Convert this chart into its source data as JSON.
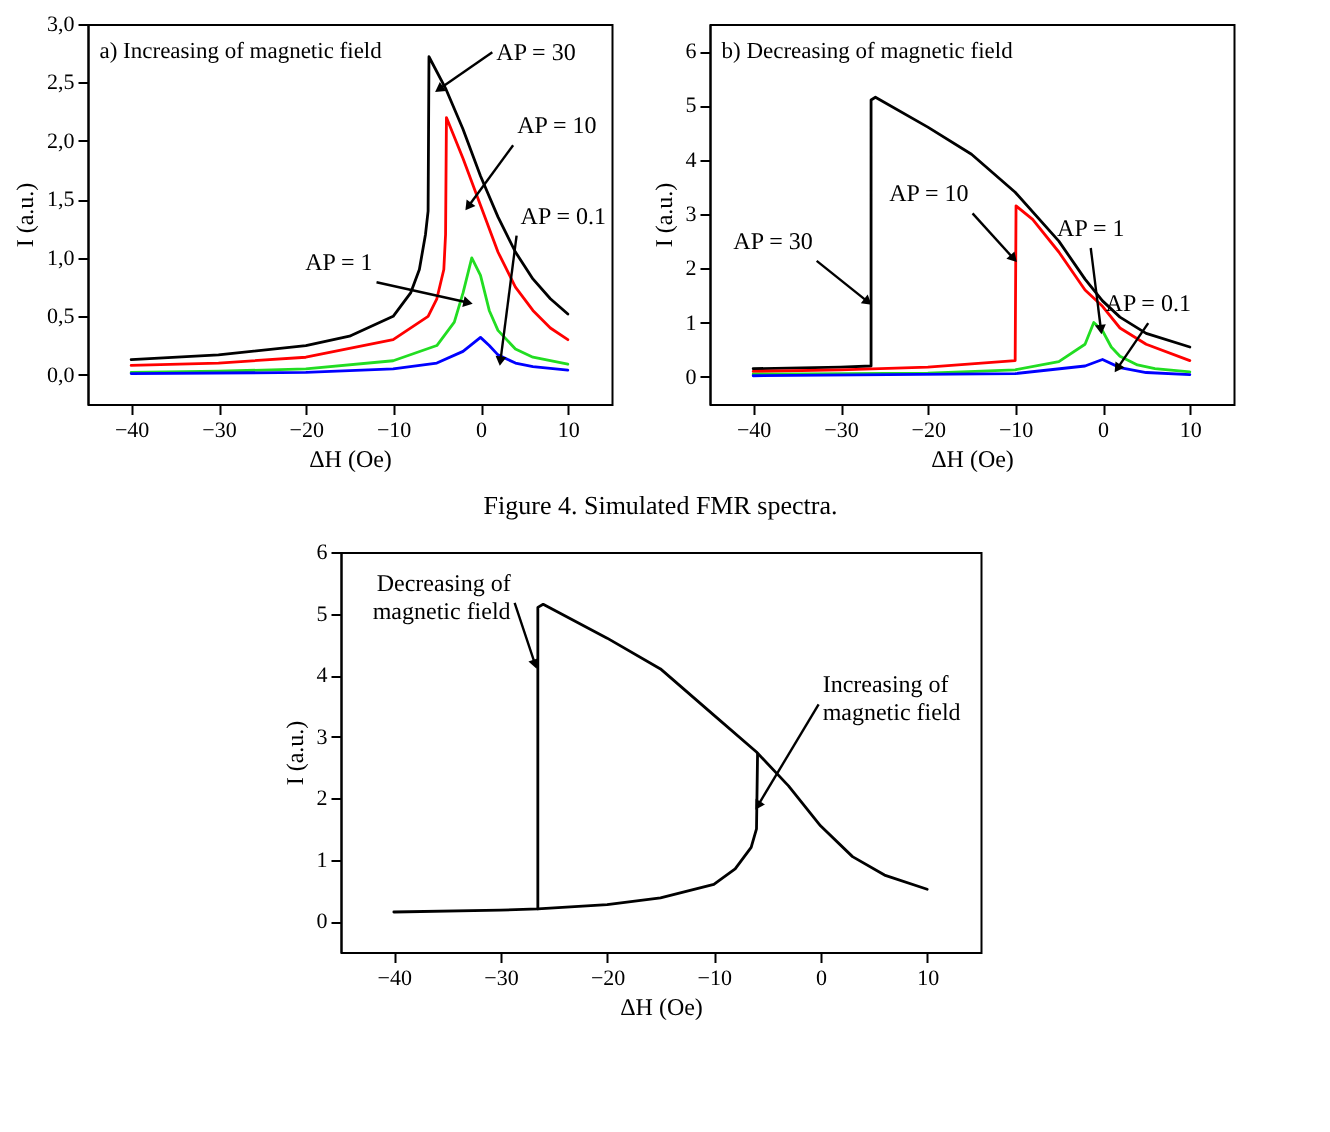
{
  "chart_data": [
    {
      "type": "line",
      "title": "a) Increasing of magnetic field",
      "xlabel": "ΔH (Oe)",
      "ylabel": "I (a.u.)",
      "xlim": [
        -45,
        15
      ],
      "xticks": [
        -40,
        -30,
        -20,
        -10,
        0,
        10
      ],
      "ylim": [
        -0.25,
        3.0
      ],
      "yticks": [
        {
          "value": 0,
          "label": "0,0"
        },
        {
          "value": 0.5,
          "label": "0,5"
        },
        {
          "value": 1,
          "label": "1,0"
        },
        {
          "value": 1.5,
          "label": "1,5"
        },
        {
          "value": 2,
          "label": "2,0"
        },
        {
          "value": 2.5,
          "label": "2,5"
        },
        {
          "value": 3,
          "label": "3,0"
        }
      ],
      "grid": false,
      "line_style": "solid",
      "marker": "none",
      "series": [
        {
          "color": "#000000",
          "x": [
            -40,
            -30,
            -20,
            -15,
            -10,
            -8,
            -7,
            -6.3,
            -6,
            -5.9,
            -4,
            -2,
            0,
            2,
            4,
            6,
            8,
            10
          ],
          "values": [
            0.13,
            0.17,
            0.25,
            0.33,
            0.5,
            0.7,
            0.9,
            1.2,
            1.4,
            2.72,
            2.45,
            2.1,
            1.7,
            1.35,
            1.05,
            0.82,
            0.65,
            0.52
          ]
        },
        {
          "color": "#ff0000",
          "x": [
            -40,
            -30,
            -20,
            -10,
            -6,
            -5,
            -4.2,
            -4,
            -3.9,
            -2,
            0,
            2,
            4,
            6,
            8,
            10
          ],
          "values": [
            0.08,
            0.1,
            0.15,
            0.3,
            0.5,
            0.65,
            0.9,
            1.2,
            2.2,
            1.85,
            1.45,
            1.05,
            0.75,
            0.55,
            0.4,
            0.3
          ]
        },
        {
          "color": "#22dd22",
          "x": [
            -40,
            -30,
            -20,
            -10,
            -5,
            -3,
            -2,
            -1,
            0,
            1,
            2,
            4,
            6,
            10
          ],
          "values": [
            0.02,
            0.03,
            0.05,
            0.12,
            0.25,
            0.45,
            0.7,
            1.0,
            0.85,
            0.55,
            0.38,
            0.22,
            0.15,
            0.09
          ]
        },
        {
          "color": "#0000ff",
          "x": [
            -40,
            -20,
            -10,
            -5,
            -2,
            0,
            1,
            2,
            4,
            6,
            10
          ],
          "values": [
            0.01,
            0.02,
            0.05,
            0.1,
            0.2,
            0.32,
            0.25,
            0.17,
            0.1,
            0.07,
            0.04
          ]
        }
      ],
      "annotations": [
        "Figure 4. Simulated FMR spectra.",
        {
          "text": "AP = 30",
          "x": -4.6,
          "y": 2.45
        },
        {
          "text": "AP = 10",
          "x": -1.3,
          "y": 1.45
        },
        {
          "text": "AP = 1",
          "x": -1.6,
          "y": 0.62
        },
        {
          "text": "AP = 0.1",
          "x": 2.3,
          "y": 0.13
        }
      ]
    },
    {
      "type": "line",
      "title": "b) Decreasing of magnetic field",
      "xlabel": "ΔH (Oe)",
      "ylabel": "I (a.u.)",
      "xlim": [
        -45,
        15
      ],
      "xticks": [
        -40,
        -30,
        -20,
        -10,
        0,
        10
      ],
      "ylim": [
        -0.5,
        6.5
      ],
      "yticks": [
        0,
        1,
        2,
        3,
        4,
        5,
        6
      ],
      "grid": false,
      "line_style": "solid",
      "marker": "none",
      "series": [
        {
          "color": "#000000",
          "x": [
            -40,
            -30,
            -26.5,
            -26.5,
            -26,
            -20,
            -15,
            -10,
            -5,
            -2,
            0,
            2,
            5,
            10
          ],
          "values": [
            0.15,
            0.18,
            0.2,
            5.1,
            5.15,
            4.6,
            4.1,
            3.4,
            2.5,
            1.8,
            1.4,
            1.1,
            0.8,
            0.55
          ]
        },
        {
          "color": "#ff0000",
          "x": [
            -40,
            -30,
            -20,
            -10,
            -9.9,
            -8,
            -5,
            -2,
            0,
            2,
            5,
            10
          ],
          "values": [
            0.1,
            0.13,
            0.18,
            0.3,
            3.15,
            2.9,
            2.3,
            1.6,
            1.3,
            0.9,
            0.6,
            0.3
          ]
        },
        {
          "color": "#22dd22",
          "x": [
            -40,
            -20,
            -10,
            -5,
            -2,
            -1,
            0,
            1,
            2,
            4,
            6,
            10
          ],
          "values": [
            0.05,
            0.07,
            0.13,
            0.28,
            0.6,
            1.0,
            0.85,
            0.55,
            0.38,
            0.22,
            0.15,
            0.09
          ]
        },
        {
          "color": "#0000ff",
          "x": [
            -40,
            -10,
            -2,
            0,
            2,
            5,
            10
          ],
          "values": [
            0.02,
            0.06,
            0.2,
            0.32,
            0.17,
            0.08,
            0.04
          ]
        }
      ],
      "annotations": [
        {
          "text": "AP = 30",
          "x": -27,
          "y": 1.4
        },
        {
          "text": "AP = 10",
          "x": -10.3,
          "y": 2.2
        },
        {
          "text": "AP = 1",
          "x": -0.2,
          "y": 0.9
        },
        {
          "text": "AP = 0.1",
          "x": 1.8,
          "y": 0.18
        }
      ]
    },
    {
      "type": "line",
      "xlabel": "ΔH (Oe)",
      "ylabel": "I (a.u.)",
      "xlim": [
        -45,
        15
      ],
      "xticks": [
        -40,
        -30,
        -20,
        -10,
        0,
        10
      ],
      "ylim": [
        -0.5,
        6
      ],
      "yticks": [
        0,
        1,
        2,
        3,
        4,
        5,
        6
      ],
      "grid": false,
      "line_style": "solid",
      "marker": "none",
      "series": [
        {
          "color": "#000000",
          "x": [
            -40,
            -30,
            -26.5,
            -26.5,
            -26,
            -20,
            -15,
            -10,
            -6,
            -3,
            0,
            3,
            6,
            10
          ],
          "values": [
            0.15,
            0.18,
            0.2,
            5.1,
            5.15,
            4.6,
            4.1,
            3.35,
            2.75,
            2.2,
            1.55,
            1.05,
            0.75,
            0.52
          ]
        },
        {
          "color": "#000000",
          "x": [
            -26.5,
            -20,
            -15,
            -10,
            -8,
            -6.5,
            -6,
            -5.9
          ],
          "values": [
            0.2,
            0.27,
            0.38,
            0.6,
            0.85,
            1.2,
            1.5,
            2.72
          ]
        }
      ],
      "annotations": [
        {
          "text": "Decreasing of\nmagnetic field",
          "x": -26.8,
          "y": 4.2
        },
        {
          "text": "Increasing of\nmagnetic field",
          "x": -5.8,
          "y": 1.9
        }
      ]
    }
  ]
}
